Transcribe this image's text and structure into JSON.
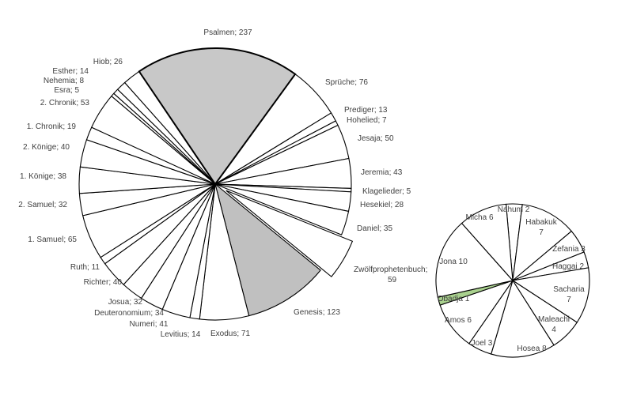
{
  "chart_data": [
    {
      "type": "pie",
      "title": "",
      "label_format": "name; value",
      "start_slice": "Psalmen",
      "direction": "clockwise",
      "slices": [
        {
          "name": "Psalmen",
          "value": 237,
          "fill": "#c8c8c8",
          "highlighted": true
        },
        {
          "name": "Sprüche",
          "value": 76,
          "fill": "#ffffff"
        },
        {
          "name": "Prediger",
          "value": 13,
          "fill": "#ffffff"
        },
        {
          "name": "Hohelied",
          "value": 7,
          "fill": "#ffffff"
        },
        {
          "name": "Jesaja",
          "value": 50,
          "fill": "#ffffff"
        },
        {
          "name": "Jeremia",
          "value": 43,
          "fill": "#ffffff"
        },
        {
          "name": "Klagelieder",
          "value": 5,
          "fill": "#ffffff"
        },
        {
          "name": "Hesekiel",
          "value": 28,
          "fill": "#ffffff"
        },
        {
          "name": "Daniel",
          "value": 35,
          "fill": "#ffffff"
        },
        {
          "name": "Zwölfprophetenbuch",
          "value": 59,
          "fill": "#ffffff",
          "exploded": true
        },
        {
          "name": "Genesis",
          "value": 123,
          "fill": "#c0c0c0"
        },
        {
          "name": "Exodus",
          "value": 71,
          "fill": "#ffffff"
        },
        {
          "name": "Levitius",
          "value": 14,
          "fill": "#ffffff"
        },
        {
          "name": "Numeri",
          "value": 41,
          "fill": "#ffffff"
        },
        {
          "name": "Deuteronomium",
          "value": 34,
          "fill": "#ffffff"
        },
        {
          "name": "Josua",
          "value": 32,
          "fill": "#ffffff"
        },
        {
          "name": "Richter",
          "value": 40,
          "fill": "#ffffff"
        },
        {
          "name": "Ruth",
          "value": 11,
          "fill": "#ffffff"
        },
        {
          "name": "1. Samuel",
          "value": 65,
          "fill": "#ffffff"
        },
        {
          "name": "2. Samuel",
          "value": 32,
          "fill": "#ffffff"
        },
        {
          "name": "1. Könige",
          "value": 38,
          "fill": "#ffffff"
        },
        {
          "name": "2. Könige",
          "value": 40,
          "fill": "#ffffff"
        },
        {
          "name": "1. Chronik",
          "value": 19,
          "fill": "#ffffff"
        },
        {
          "name": "2. Chronik",
          "value": 53,
          "fill": "#ffffff"
        },
        {
          "name": "Esra",
          "value": 5,
          "fill": "#ffffff"
        },
        {
          "name": "Nehemia",
          "value": 8,
          "fill": "#ffffff"
        },
        {
          "name": "Esther",
          "value": 14,
          "fill": "#ffffff"
        },
        {
          "name": "Hiob",
          "value": 26,
          "fill": "#ffffff"
        }
      ]
    },
    {
      "type": "pie",
      "title": "",
      "label_format": "name value",
      "start_slice": "Nahum",
      "direction": "clockwise",
      "slices": [
        {
          "name": "Nahum",
          "value": 2,
          "fill": "#ffffff"
        },
        {
          "name": "Habakuk",
          "value": 7,
          "fill": "#ffffff"
        },
        {
          "name": "Zefania",
          "value": 3,
          "fill": "#ffffff"
        },
        {
          "name": "Haggai",
          "value": 2,
          "fill": "#ffffff"
        },
        {
          "name": "Sacharia",
          "value": 7,
          "fill": "#ffffff"
        },
        {
          "name": "Maleachi",
          "value": 4,
          "fill": "#ffffff"
        },
        {
          "name": "Hosea",
          "value": 8,
          "fill": "#ffffff"
        },
        {
          "name": "Joel",
          "value": 3,
          "fill": "#ffffff"
        },
        {
          "name": "Amos",
          "value": 6,
          "fill": "#ffffff"
        },
        {
          "name": "Obadja",
          "value": 1,
          "fill": "#a9d18e"
        },
        {
          "name": "Jona",
          "value": 10,
          "fill": "#ffffff"
        },
        {
          "name": "Micha",
          "value": 6,
          "fill": "#ffffff"
        }
      ]
    }
  ]
}
